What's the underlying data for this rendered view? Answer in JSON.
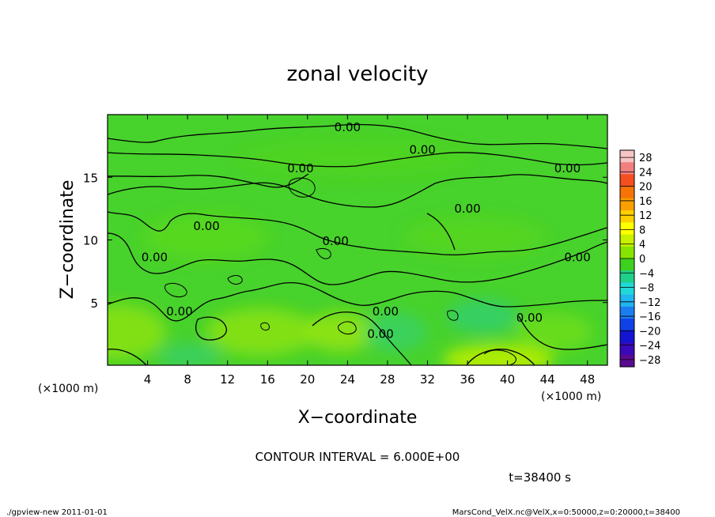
{
  "chart_data": {
    "type": "heatmap",
    "title": "zonal velocity",
    "xlabel": "X−coordinate",
    "ylabel": "Z−coordinate",
    "x_unit": "(×1000 m)",
    "y_unit": "(×1000 m)",
    "xlim": [
      0,
      50
    ],
    "ylim": [
      0,
      20
    ],
    "x_ticks": [
      4,
      8,
      12,
      16,
      20,
      24,
      28,
      32,
      36,
      40,
      44,
      48
    ],
    "y_ticks": [
      5,
      10,
      15
    ],
    "colorbar": {
      "min": -30,
      "max": 30,
      "step": 4,
      "labels": [
        "28",
        "24",
        "20",
        "16",
        "12",
        "8",
        "4",
        "0",
        "−4",
        "−8",
        "−12",
        "−16",
        "−20",
        "−24",
        "−28"
      ],
      "colors": [
        "#f7c4c4",
        "#f08080",
        "#f44f1e",
        "#f77306",
        "#fb9f00",
        "#ffd000",
        "#ffff00",
        "#c8f000",
        "#86e400",
        "#3ed01e",
        "#1fd08a",
        "#20d8d8",
        "#20b6f0",
        "#1a7ef0",
        "#1040e8",
        "#1414d2",
        "#3a08b8",
        "#5a0a90"
      ]
    },
    "contour_level_label": "0.00",
    "contour_labels": [
      {
        "x": 24.0,
        "y": 19.0
      },
      {
        "x": 31.5,
        "y": 17.2
      },
      {
        "x": 19.3,
        "y": 15.7
      },
      {
        "x": 46.0,
        "y": 15.7
      },
      {
        "x": 36.0,
        "y": 12.5
      },
      {
        "x": 9.9,
        "y": 11.1
      },
      {
        "x": 22.8,
        "y": 9.9
      },
      {
        "x": 4.7,
        "y": 8.6
      },
      {
        "x": 47.0,
        "y": 8.6
      },
      {
        "x": 7.2,
        "y": 4.3
      },
      {
        "x": 27.8,
        "y": 4.3
      },
      {
        "x": 42.2,
        "y": 3.8
      },
      {
        "x": 27.3,
        "y": 2.5
      }
    ],
    "contour_interval_text": "CONTOUR INTERVAL = 6.000E+00",
    "time_text": "t=38400 s",
    "grid": false
  },
  "footer": {
    "left": "./gpview-new   2011-01-01",
    "right": "MarsCond_VelX.nc@VelX,x=0:50000,z=0:20000,t=38400"
  }
}
